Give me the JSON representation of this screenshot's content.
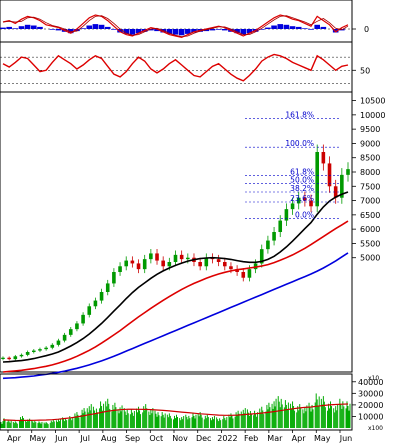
{
  "chart_data": {
    "type": "candlestick",
    "x_ticks": [
      "Apr",
      "May",
      "Jun",
      "Jul",
      "Aug",
      "Sep",
      "Oct",
      "Nov",
      "Dec",
      "2022",
      "Feb",
      "Mar",
      "Apr",
      "May",
      "Jun"
    ],
    "price_axis": {
      "ticks": [
        5000,
        5500,
        6000,
        6500,
        7000,
        7500,
        8000,
        8500,
        9000,
        9500,
        10000,
        10500
      ],
      "range": [
        1000,
        10800
      ]
    },
    "indicator1_axis": {
      "ticks": [
        "0"
      ]
    },
    "indicator2_axis": {
      "ticks": [
        "50"
      ]
    },
    "volume_axis": {
      "ticks": [
        "40000",
        "30000",
        "20000",
        "10000"
      ],
      "multiplier_label": "x100"
    },
    "price_multiplier_label": "x10",
    "vol_multiplier_label": "x100",
    "fibonacci": {
      "levels": [
        {
          "label": "161.8%",
          "value": 9880
        },
        {
          "label": "100.0%",
          "value": 8870
        },
        {
          "label": "61.8%",
          "value": 7880
        },
        {
          "label": "50.0%",
          "value": 7600
        },
        {
          "label": "38.2%",
          "value": 7300
        },
        {
          "label": "23.6%",
          "value": 6950
        },
        {
          "label": "0.0%",
          "value": 6380
        }
      ]
    },
    "series": {
      "close": [
        1500,
        1450,
        1550,
        1600,
        1700,
        1750,
        1800,
        1850,
        1950,
        2100,
        2300,
        2500,
        2700,
        3000,
        3300,
        3500,
        3800,
        4100,
        4500,
        4700,
        4900,
        4800,
        4600,
        4950,
        5150,
        4900,
        4700,
        4850,
        5100,
        4950,
        5000,
        4850,
        4700,
        5000,
        4950,
        4850,
        4700,
        4600,
        4500,
        4300,
        4600,
        4800,
        5300,
        5600,
        5900,
        6300,
        6700,
        6900,
        7100,
        7000,
        6800,
        8700,
        8300,
        7500,
        7100,
        7900,
        8100
      ],
      "ma_black": [
        1350,
        1360,
        1380,
        1400,
        1430,
        1470,
        1520,
        1570,
        1630,
        1700,
        1800,
        1910,
        2030,
        2170,
        2330,
        2510,
        2700,
        2910,
        3130,
        3350,
        3570,
        3780,
        3960,
        4120,
        4280,
        4420,
        4540,
        4640,
        4730,
        4810,
        4880,
        4930,
        4970,
        4990,
        5000,
        4990,
        4970,
        4940,
        4900,
        4860,
        4840,
        4840,
        4870,
        4940,
        5050,
        5200,
        5380,
        5580,
        5800,
        6020,
        6230,
        6520,
        6780,
        6980,
        7120,
        7220,
        7300
      ],
      "ma_red": [
        1000,
        1020,
        1040,
        1060,
        1090,
        1120,
        1160,
        1200,
        1250,
        1310,
        1380,
        1460,
        1550,
        1650,
        1760,
        1880,
        2010,
        2150,
        2300,
        2450,
        2610,
        2770,
        2930,
        3080,
        3230,
        3370,
        3510,
        3640,
        3770,
        3890,
        4000,
        4100,
        4190,
        4280,
        4360,
        4430,
        4490,
        4540,
        4580,
        4610,
        4640,
        4670,
        4710,
        4760,
        4830,
        4910,
        5000,
        5100,
        5210,
        5330,
        5460,
        5600,
        5740,
        5880,
        6020,
        6150,
        6280
      ],
      "ma_blue": [
        780,
        790,
        800,
        820,
        840,
        860,
        890,
        920,
        950,
        990,
        1030,
        1080,
        1130,
        1190,
        1250,
        1320,
        1390,
        1470,
        1550,
        1640,
        1730,
        1820,
        1910,
        2000,
        2090,
        2180,
        2270,
        2360,
        2450,
        2540,
        2630,
        2720,
        2810,
        2900,
        2990,
        3080,
        3170,
        3260,
        3350,
        3440,
        3530,
        3620,
        3710,
        3800,
        3890,
        3980,
        4070,
        4160,
        4250,
        4340,
        4430,
        4530,
        4640,
        4760,
        4890,
        5030,
        5170
      ],
      "indicator1": [
        0.5,
        0.6,
        0.4,
        0.7,
        0.9,
        0.8,
        0.6,
        0.3,
        0.2,
        0.1,
        -0.1,
        -0.3,
        0.0,
        0.4,
        0.8,
        1.0,
        0.9,
        0.6,
        0.2,
        -0.2,
        -0.4,
        -0.5,
        -0.3,
        -0.1,
        0.1,
        0.0,
        -0.2,
        -0.4,
        -0.5,
        -0.6,
        -0.4,
        -0.2,
        -0.1,
        0.0,
        0.1,
        0.2,
        0.1,
        -0.1,
        -0.3,
        -0.5,
        -0.3,
        -0.1,
        0.2,
        0.5,
        0.8,
        1.0,
        0.9,
        0.7,
        0.6,
        0.4,
        0.2,
        0.9,
        0.6,
        0.3,
        -0.2,
        0.1,
        0.3
      ],
      "indicator2": [
        60,
        55,
        62,
        70,
        68,
        58,
        48,
        50,
        62,
        72,
        66,
        60,
        52,
        58,
        66,
        72,
        68,
        56,
        44,
        40,
        48,
        60,
        70,
        64,
        52,
        46,
        52,
        60,
        66,
        58,
        50,
        42,
        40,
        48,
        56,
        60,
        52,
        44,
        38,
        34,
        42,
        52,
        64,
        70,
        74,
        72,
        68,
        62,
        58,
        54,
        50,
        72,
        66,
        58,
        50,
        56,
        58
      ],
      "volume": [
        8000,
        6000,
        5000,
        9000,
        7000,
        6000,
        5000,
        4500,
        6000,
        7000,
        8000,
        9000,
        12000,
        15000,
        18000,
        16000,
        20000,
        22000,
        19000,
        17000,
        15000,
        14000,
        16000,
        18000,
        15000,
        13000,
        12000,
        11000,
        10000,
        9000,
        10000,
        11000,
        12000,
        10000,
        9000,
        8000,
        9000,
        11000,
        13000,
        15000,
        14000,
        13000,
        16000,
        19000,
        22000,
        24000,
        21000,
        20000,
        18000,
        17000,
        19000,
        26000,
        24000,
        20000,
        18000,
        22000,
        20000
      ],
      "volume_ma": [
        7000,
        6800,
        6600,
        6500,
        6600,
        6700,
        6800,
        6900,
        7200,
        7600,
        8200,
        8800,
        9600,
        10500,
        11500,
        12500,
        13500,
        14500,
        15200,
        15800,
        16200,
        16300,
        16200,
        16100,
        15900,
        15600,
        15200,
        14800,
        14300,
        13800,
        13300,
        12800,
        12300,
        11900,
        11500,
        11200,
        11000,
        11000,
        11200,
        11600,
        12000,
        12400,
        12900,
        13500,
        14200,
        15000,
        15800,
        16600,
        17300,
        17800,
        18200,
        18900,
        19500,
        20000,
        20300,
        20600,
        20800
      ]
    }
  }
}
